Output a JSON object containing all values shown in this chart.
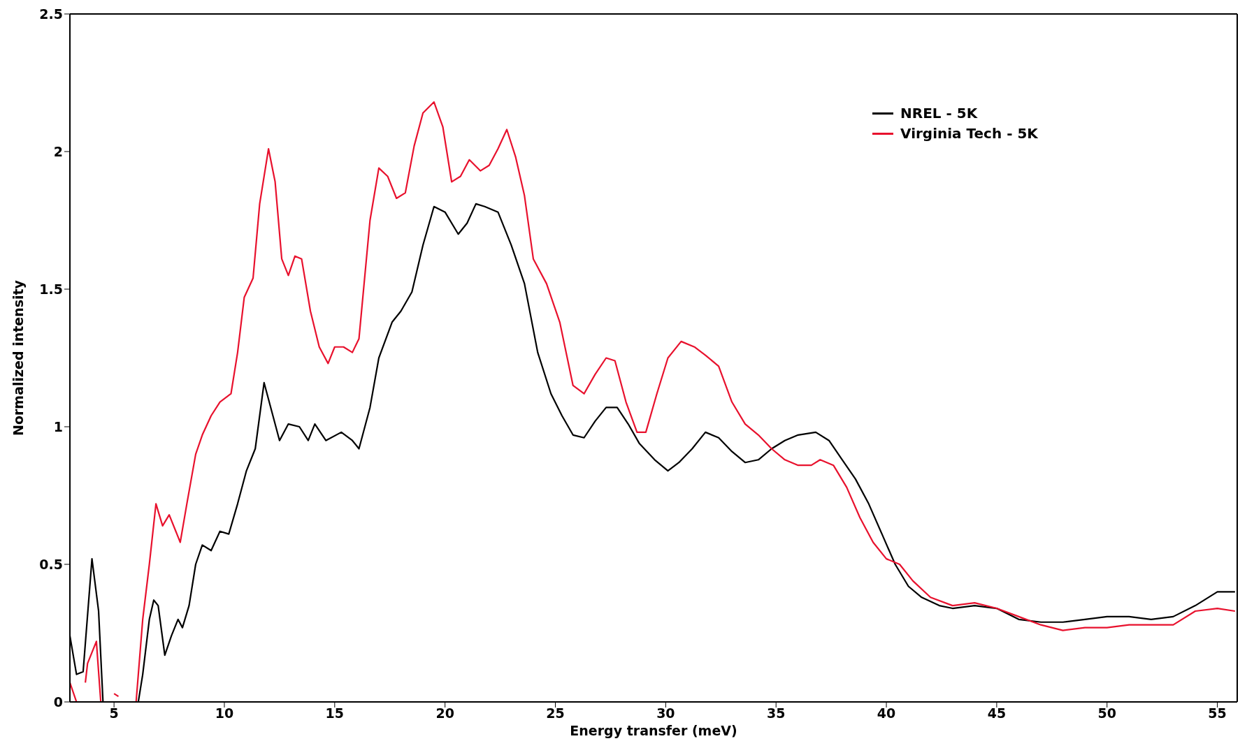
{
  "chart_data": {
    "type": "line",
    "xlabel": "Energy transfer (meV)",
    "ylabel": "Normalized intensity",
    "xlim": [
      3,
      55.9
    ],
    "xticks": [
      5,
      10,
      15,
      20,
      25,
      30,
      35,
      40,
      45,
      50,
      55
    ],
    "ylim": [
      0,
      2.5
    ],
    "yticks": [
      0,
      0.5,
      1,
      1.5,
      2,
      2.5
    ],
    "legend": "top right",
    "marker": "none",
    "line_style": "solid",
    "series": [
      {
        "name": "NREL - 5K",
        "color": "#000000",
        "x": [
          3.0,
          3.3,
          3.6,
          4.0,
          4.3,
          4.5,
          5.0,
          6.1,
          6.3,
          6.6,
          6.8,
          7.0,
          7.3,
          7.6,
          7.9,
          8.1,
          8.4,
          8.7,
          9.0,
          9.4,
          9.8,
          10.2,
          10.6,
          11.0,
          11.4,
          11.8,
          12.2,
          12.5,
          12.9,
          13.4,
          13.8,
          14.1,
          14.6,
          15.3,
          15.8,
          16.1,
          16.6,
          17.0,
          17.6,
          18.0,
          18.5,
          19.0,
          19.5,
          20.0,
          20.6,
          21.0,
          21.4,
          21.8,
          22.4,
          23.0,
          23.6,
          24.2,
          24.8,
          25.3,
          25.8,
          26.3,
          26.8,
          27.3,
          27.8,
          28.3,
          28.8,
          29.5,
          30.1,
          30.6,
          31.2,
          31.8,
          32.4,
          33.0,
          33.6,
          34.2,
          34.8,
          35.4,
          36.0,
          36.8,
          37.4,
          38.0,
          38.6,
          39.2,
          39.8,
          40.4,
          41.0,
          41.6,
          42.4,
          43.0,
          44.0,
          45.0,
          46.0,
          47.0,
          48.0,
          49.0,
          50.0,
          51.0,
          52.0,
          53.0,
          54.0,
          55.0,
          55.8
        ],
        "values": [
          0.24,
          0.1,
          0.11,
          0.52,
          0.33,
          0,
          null,
          0,
          0.1,
          0.3,
          0.37,
          0.35,
          0.17,
          0.24,
          0.3,
          0.27,
          0.35,
          0.5,
          0.57,
          0.55,
          0.62,
          0.61,
          0.72,
          0.84,
          0.92,
          1.16,
          1.04,
          0.95,
          1.01,
          1.0,
          0.95,
          1.01,
          0.95,
          0.98,
          0.95,
          0.92,
          1.07,
          1.25,
          1.38,
          1.42,
          1.49,
          1.66,
          1.8,
          1.78,
          1.7,
          1.74,
          1.81,
          1.8,
          1.78,
          1.66,
          1.52,
          1.27,
          1.12,
          1.04,
          0.97,
          0.96,
          1.02,
          1.07,
          1.07,
          1.01,
          0.94,
          0.88,
          0.84,
          0.87,
          0.92,
          0.98,
          0.96,
          0.91,
          0.87,
          0.88,
          0.92,
          0.95,
          0.97,
          0.98,
          0.95,
          0.88,
          0.81,
          0.72,
          0.61,
          0.5,
          0.42,
          0.38,
          0.35,
          0.34,
          0.35,
          0.34,
          0.3,
          0.29,
          0.29,
          0.3,
          0.31,
          0.31,
          0.3,
          0.31,
          0.35,
          0.4,
          0.4
        ]
      },
      {
        "name": "Virginia Tech - 5K",
        "color": "#e8112d",
        "x": [
          3.0,
          3.3,
          3.5,
          3.7,
          3.8,
          4.0,
          4.2,
          4.4,
          4.7,
          5.0,
          5.2,
          5.5,
          6.0,
          6.3,
          6.6,
          6.9,
          7.2,
          7.5,
          7.8,
          8.0,
          8.3,
          8.7,
          9.0,
          9.4,
          9.8,
          10.3,
          10.6,
          10.9,
          11.3,
          11.6,
          12.0,
          12.3,
          12.6,
          12.9,
          13.2,
          13.5,
          13.9,
          14.3,
          14.7,
          15.0,
          15.4,
          15.8,
          16.1,
          16.6,
          17.0,
          17.4,
          17.8,
          18.2,
          18.6,
          19.0,
          19.5,
          19.9,
          20.3,
          20.7,
          21.1,
          21.6,
          22.0,
          22.4,
          22.8,
          23.2,
          23.6,
          24.0,
          24.6,
          25.2,
          25.8,
          26.3,
          26.8,
          27.3,
          27.7,
          28.2,
          28.7,
          29.1,
          29.6,
          30.1,
          30.7,
          31.3,
          31.8,
          32.4,
          33.0,
          33.6,
          34.2,
          34.8,
          35.4,
          36.0,
          36.6,
          37.0,
          37.6,
          38.2,
          38.8,
          39.4,
          40.0,
          40.6,
          41.2,
          42.0,
          43.0,
          44.0,
          45.0,
          46.0,
          47.0,
          48.0,
          49.0,
          50.0,
          51.0,
          52.0,
          53.0,
          54.0,
          55.0,
          55.8
        ],
        "values": [
          0.07,
          0,
          null,
          0.07,
          0.14,
          0.18,
          0.22,
          0,
          null,
          0.03,
          0.02,
          null,
          0,
          0.3,
          0.5,
          0.72,
          0.64,
          0.68,
          0.62,
          0.58,
          0.72,
          0.9,
          0.97,
          1.04,
          1.09,
          1.12,
          1.27,
          1.47,
          1.54,
          1.81,
          2.01,
          1.89,
          1.61,
          1.55,
          1.62,
          1.61,
          1.42,
          1.29,
          1.23,
          1.29,
          1.29,
          1.27,
          1.32,
          1.75,
          1.94,
          1.91,
          1.83,
          1.85,
          2.02,
          2.14,
          2.18,
          2.09,
          1.89,
          1.91,
          1.97,
          1.93,
          1.95,
          2.01,
          2.08,
          1.98,
          1.84,
          1.61,
          1.52,
          1.38,
          1.15,
          1.12,
          1.19,
          1.25,
          1.24,
          1.09,
          0.98,
          0.98,
          1.12,
          1.25,
          1.31,
          1.29,
          1.26,
          1.22,
          1.09,
          1.01,
          0.97,
          0.92,
          0.88,
          0.86,
          0.86,
          0.88,
          0.86,
          0.78,
          0.67,
          0.58,
          0.52,
          0.5,
          0.44,
          0.38,
          0.35,
          0.36,
          0.34,
          0.31,
          0.28,
          0.26,
          0.27,
          0.27,
          0.28,
          0.28,
          0.28,
          0.33,
          0.34,
          0.33
        ]
      }
    ]
  }
}
